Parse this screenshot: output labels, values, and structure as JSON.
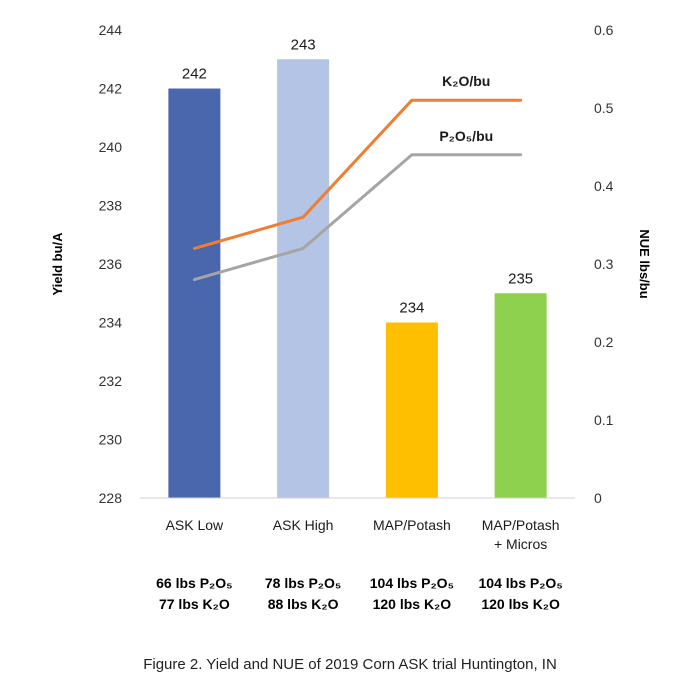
{
  "chart_data": {
    "type": "bar",
    "categories": [
      [
        "ASK Low"
      ],
      [
        "ASK High"
      ],
      [
        "MAP/Potash"
      ],
      [
        "MAP/Potash",
        "+ Micros"
      ]
    ],
    "values": [
      242,
      243,
      234,
      235
    ],
    "data_labels": [
      "242",
      "243",
      "234",
      "235"
    ],
    "bar_colors": [
      "#4a67ad",
      "#b4c4e4",
      "#fdbf00",
      "#8dd14f"
    ],
    "ylabel": "Yield bu/A",
    "ylim": [
      228,
      244
    ],
    "yticks": [
      "228",
      "230",
      "232",
      "234",
      "236",
      "238",
      "240",
      "242",
      "244"
    ],
    "y2label": "NUE lbs/bu",
    "y2lim": [
      0,
      0.6
    ],
    "y2ticks": [
      "0",
      "0.1",
      "0.2",
      "0.3",
      "0.4",
      "0.5",
      "0.6"
    ],
    "line_series": [
      {
        "name": "K₂O/bu",
        "values": [
          0.32,
          0.36,
          0.51,
          0.51
        ],
        "color": "#ee7e33"
      },
      {
        "name": "P₂O₅/bu",
        "values": [
          0.28,
          0.32,
          0.44,
          0.44
        ],
        "color": "#a5a5a5"
      }
    ],
    "rates": [
      [
        "66 lbs P₂O₅",
        "77 lbs K₂O"
      ],
      [
        "78 lbs P₂O₅",
        "88 lbs K₂O"
      ],
      [
        "104 lbs P₂O₅",
        "120 lbs K₂O"
      ],
      [
        "104 lbs P₂O₅",
        "120 lbs K₂O"
      ]
    ],
    "grid": false,
    "legend": "none"
  },
  "caption": "Figure 2. Yield and NUE of 2019 Corn ASK trial Huntington, IN"
}
